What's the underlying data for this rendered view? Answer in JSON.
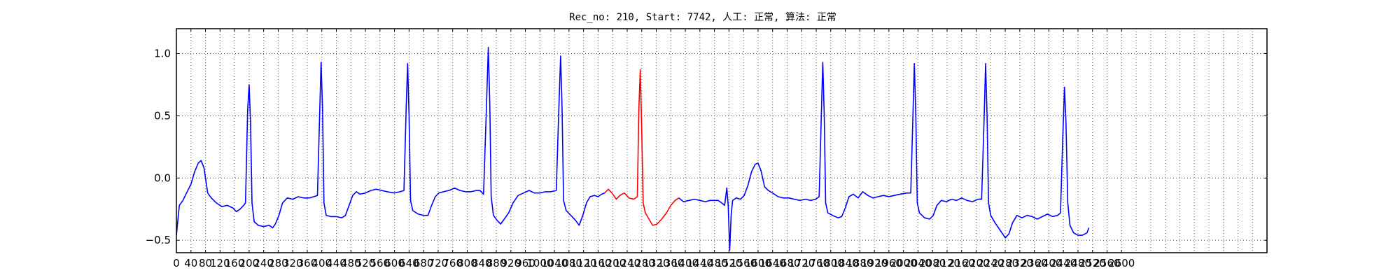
{
  "chart_data": {
    "type": "line",
    "title": "Rec_no: 210, Start: 7742, 人工: 正常, 算法: 正常",
    "xlabel": "",
    "ylabel": "",
    "xlim": [
      0,
      3000
    ],
    "ylim": [
      -0.6,
      1.2
    ],
    "x_ticks": [
      0,
      40,
      80,
      120,
      160,
      200,
      240,
      280,
      320,
      360,
      400,
      440,
      480,
      520,
      560,
      600,
      640,
      680,
      720,
      760,
      800,
      840,
      880,
      920,
      960,
      1000,
      1040,
      1080,
      1120,
      1160,
      1200,
      1240,
      1280,
      1320,
      1360,
      1400,
      1440,
      1480,
      1520,
      1560,
      1600,
      1640,
      1680,
      1720,
      1760,
      1800,
      1840,
      1880,
      1920,
      1960,
      2000,
      2040,
      2080,
      2120,
      2160,
      2200,
      2240,
      2280,
      2320,
      2360,
      2400,
      2440,
      2480,
      2520,
      2560,
      2600
    ],
    "y_ticks": [
      -0.5,
      0.0,
      0.5,
      1.0
    ],
    "y_tick_labels": [
      "−0.5",
      "0.0",
      "0.5",
      "1.0"
    ],
    "grid": true,
    "grid_style": "dotted",
    "colors": {
      "normal": "#0000ff",
      "highlight": "#ff0000",
      "grid": "#555555"
    },
    "series": [
      {
        "color": "#0000ff",
        "points": [
          [
            0,
            -0.46
          ],
          [
            8,
            -0.22
          ],
          [
            18,
            -0.18
          ],
          [
            28,
            -0.12
          ],
          [
            40,
            -0.05
          ],
          [
            50,
            0.05
          ],
          [
            60,
            0.12
          ],
          [
            68,
            0.14
          ],
          [
            76,
            0.08
          ],
          [
            86,
            -0.12
          ],
          [
            96,
            -0.16
          ],
          [
            110,
            -0.2
          ],
          [
            125,
            -0.23
          ],
          [
            140,
            -0.22
          ],
          [
            155,
            -0.24
          ],
          [
            165,
            -0.27
          ],
          [
            175,
            -0.25
          ],
          [
            185,
            -0.22
          ],
          [
            190,
            -0.2
          ],
          [
            196,
            0.55
          ],
          [
            200,
            0.75
          ],
          [
            204,
            0.45
          ],
          [
            208,
            -0.2
          ],
          [
            214,
            -0.35
          ],
          [
            225,
            -0.38
          ],
          [
            240,
            -0.39
          ],
          [
            255,
            -0.38
          ],
          [
            265,
            -0.4
          ],
          [
            272,
            -0.37
          ],
          [
            282,
            -0.3
          ],
          [
            292,
            -0.2
          ],
          [
            305,
            -0.16
          ],
          [
            320,
            -0.17
          ],
          [
            335,
            -0.15
          ],
          [
            350,
            -0.16
          ],
          [
            365,
            -0.16
          ],
          [
            378,
            -0.15
          ],
          [
            388,
            -0.14
          ],
          [
            394,
            0.5
          ],
          [
            398,
            0.93
          ],
          [
            402,
            0.55
          ],
          [
            406,
            -0.2
          ],
          [
            412,
            -0.3
          ],
          [
            425,
            -0.31
          ],
          [
            440,
            -0.31
          ],
          [
            455,
            -0.32
          ],
          [
            465,
            -0.3
          ],
          [
            475,
            -0.22
          ],
          [
            485,
            -0.14
          ],
          [
            495,
            -0.11
          ],
          [
            505,
            -0.13
          ],
          [
            520,
            -0.12
          ],
          [
            535,
            -0.1
          ],
          [
            550,
            -0.09
          ],
          [
            565,
            -0.1
          ],
          [
            580,
            -0.11
          ],
          [
            600,
            -0.12
          ],
          [
            615,
            -0.11
          ],
          [
            626,
            -0.1
          ],
          [
            632,
            0.55
          ],
          [
            636,
            0.92
          ],
          [
            640,
            0.5
          ],
          [
            644,
            -0.18
          ],
          [
            650,
            -0.26
          ],
          [
            665,
            -0.29
          ],
          [
            680,
            -0.3
          ],
          [
            692,
            -0.3
          ],
          [
            702,
            -0.22
          ],
          [
            712,
            -0.15
          ],
          [
            722,
            -0.12
          ],
          [
            735,
            -0.11
          ],
          [
            750,
            -0.1
          ],
          [
            765,
            -0.08
          ],
          [
            780,
            -0.1
          ],
          [
            795,
            -0.11
          ],
          [
            810,
            -0.11
          ],
          [
            825,
            -0.1
          ],
          [
            835,
            -0.1
          ],
          [
            845,
            -0.13
          ],
          [
            852,
            0.5
          ],
          [
            858,
            1.05
          ],
          [
            862,
            0.6
          ],
          [
            866,
            -0.15
          ],
          [
            872,
            -0.3
          ],
          [
            882,
            -0.34
          ],
          [
            892,
            -0.37
          ],
          [
            902,
            -0.33
          ],
          [
            914,
            -0.28
          ],
          [
            926,
            -0.2
          ],
          [
            940,
            -0.14
          ],
          [
            955,
            -0.12
          ],
          [
            970,
            -0.1
          ],
          [
            985,
            -0.12
          ],
          [
            1000,
            -0.12
          ],
          [
            1015,
            -0.11
          ],
          [
            1030,
            -0.11
          ],
          [
            1045,
            -0.1
          ],
          [
            1052,
            0.55
          ],
          [
            1057,
            0.98
          ],
          [
            1061,
            0.55
          ],
          [
            1065,
            -0.18
          ],
          [
            1072,
            -0.26
          ],
          [
            1085,
            -0.3
          ],
          [
            1098,
            -0.34
          ],
          [
            1108,
            -0.38
          ],
          [
            1118,
            -0.3
          ],
          [
            1128,
            -0.2
          ],
          [
            1138,
            -0.15
          ],
          [
            1150,
            -0.14
          ],
          [
            1160,
            -0.15
          ],
          [
            1170,
            -0.13
          ],
          [
            1178,
            -0.12
          ]
        ]
      },
      {
        "color": "#ff0000",
        "points": [
          [
            1178,
            -0.12
          ],
          [
            1188,
            -0.09
          ],
          [
            1198,
            -0.12
          ],
          [
            1210,
            -0.17
          ],
          [
            1220,
            -0.14
          ],
          [
            1232,
            -0.12
          ],
          [
            1245,
            -0.16
          ],
          [
            1258,
            -0.17
          ],
          [
            1268,
            -0.15
          ],
          [
            1272,
            0.55
          ],
          [
            1276,
            0.87
          ],
          [
            1280,
            0.4
          ],
          [
            1284,
            -0.2
          ],
          [
            1290,
            -0.28
          ],
          [
            1300,
            -0.33
          ],
          [
            1310,
            -0.38
          ],
          [
            1322,
            -0.37
          ],
          [
            1335,
            -0.33
          ],
          [
            1348,
            -0.28
          ],
          [
            1360,
            -0.22
          ],
          [
            1372,
            -0.18
          ],
          [
            1382,
            -0.16
          ]
        ]
      },
      {
        "color": "#0000ff",
        "points": [
          [
            1382,
            -0.16
          ],
          [
            1395,
            -0.19
          ],
          [
            1410,
            -0.18
          ],
          [
            1425,
            -0.17
          ],
          [
            1440,
            -0.18
          ],
          [
            1455,
            -0.19
          ],
          [
            1468,
            -0.18
          ],
          [
            1478,
            -0.18
          ],
          [
            1490,
            -0.18
          ],
          [
            1500,
            -0.2
          ],
          [
            1508,
            -0.22
          ],
          [
            1514,
            -0.08
          ],
          [
            1518,
            -0.22
          ],
          [
            1522,
            -0.58
          ],
          [
            1526,
            -0.3
          ],
          [
            1530,
            -0.18
          ],
          [
            1540,
            -0.16
          ],
          [
            1552,
            -0.17
          ],
          [
            1562,
            -0.14
          ],
          [
            1572,
            -0.06
          ],
          [
            1582,
            0.05
          ],
          [
            1592,
            0.11
          ],
          [
            1600,
            0.12
          ],
          [
            1608,
            0.06
          ],
          [
            1618,
            -0.07
          ],
          [
            1628,
            -0.1
          ],
          [
            1640,
            -0.12
          ],
          [
            1655,
            -0.15
          ],
          [
            1670,
            -0.16
          ],
          [
            1685,
            -0.16
          ],
          [
            1700,
            -0.17
          ],
          [
            1715,
            -0.18
          ],
          [
            1730,
            -0.17
          ],
          [
            1745,
            -0.18
          ],
          [
            1758,
            -0.17
          ],
          [
            1768,
            -0.15
          ],
          [
            1774,
            0.5
          ],
          [
            1778,
            0.93
          ],
          [
            1782,
            0.5
          ],
          [
            1786,
            -0.2
          ],
          [
            1792,
            -0.28
          ],
          [
            1805,
            -0.3
          ],
          [
            1820,
            -0.32
          ],
          [
            1830,
            -0.31
          ],
          [
            1840,
            -0.24
          ],
          [
            1850,
            -0.15
          ],
          [
            1862,
            -0.13
          ],
          [
            1875,
            -0.16
          ],
          [
            1888,
            -0.11
          ],
          [
            1902,
            -0.14
          ],
          [
            1916,
            -0.16
          ],
          [
            1930,
            -0.15
          ],
          [
            1945,
            -0.14
          ],
          [
            1960,
            -0.15
          ],
          [
            1975,
            -0.14
          ],
          [
            1990,
            -0.13
          ],
          [
            2010,
            -0.12
          ],
          [
            2020,
            -0.12
          ],
          [
            2026,
            0.5
          ],
          [
            2030,
            0.92
          ],
          [
            2034,
            0.5
          ],
          [
            2038,
            -0.2
          ],
          [
            2044,
            -0.28
          ],
          [
            2058,
            -0.32
          ],
          [
            2072,
            -0.33
          ],
          [
            2082,
            -0.3
          ],
          [
            2092,
            -0.22
          ],
          [
            2104,
            -0.18
          ],
          [
            2118,
            -0.19
          ],
          [
            2132,
            -0.17
          ],
          [
            2146,
            -0.18
          ],
          [
            2160,
            -0.16
          ],
          [
            2175,
            -0.18
          ],
          [
            2190,
            -0.19
          ],
          [
            2205,
            -0.17
          ],
          [
            2215,
            -0.17
          ],
          [
            2222,
            0.5
          ],
          [
            2226,
            0.92
          ],
          [
            2230,
            0.5
          ],
          [
            2234,
            -0.2
          ],
          [
            2240,
            -0.3
          ],
          [
            2252,
            -0.36
          ],
          [
            2266,
            -0.42
          ],
          [
            2280,
            -0.48
          ],
          [
            2290,
            -0.45
          ],
          [
            2300,
            -0.36
          ],
          [
            2312,
            -0.3
          ],
          [
            2326,
            -0.32
          ],
          [
            2340,
            -0.3
          ],
          [
            2354,
            -0.31
          ],
          [
            2368,
            -0.33
          ],
          [
            2382,
            -0.31
          ],
          [
            2396,
            -0.29
          ],
          [
            2410,
            -0.31
          ],
          [
            2424,
            -0.3
          ],
          [
            2432,
            -0.28
          ],
          [
            2438,
            0.3
          ],
          [
            2443,
            0.73
          ],
          [
            2447,
            0.45
          ],
          [
            2452,
            -0.2
          ],
          [
            2458,
            -0.38
          ],
          [
            2468,
            -0.44
          ],
          [
            2480,
            -0.46
          ],
          [
            2492,
            -0.46
          ],
          [
            2505,
            -0.44
          ],
          [
            2510,
            -0.4
          ]
        ]
      }
    ]
  }
}
